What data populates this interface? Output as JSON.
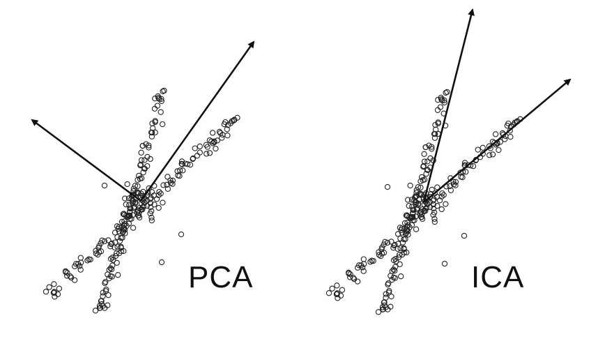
{
  "panels": [
    {
      "id": "pca",
      "label": "PCA"
    },
    {
      "id": "ica",
      "label": "ICA"
    }
  ],
  "colors": {
    "point_stroke": "#222222",
    "arrow": "#111111",
    "background": "#ffffff"
  }
}
